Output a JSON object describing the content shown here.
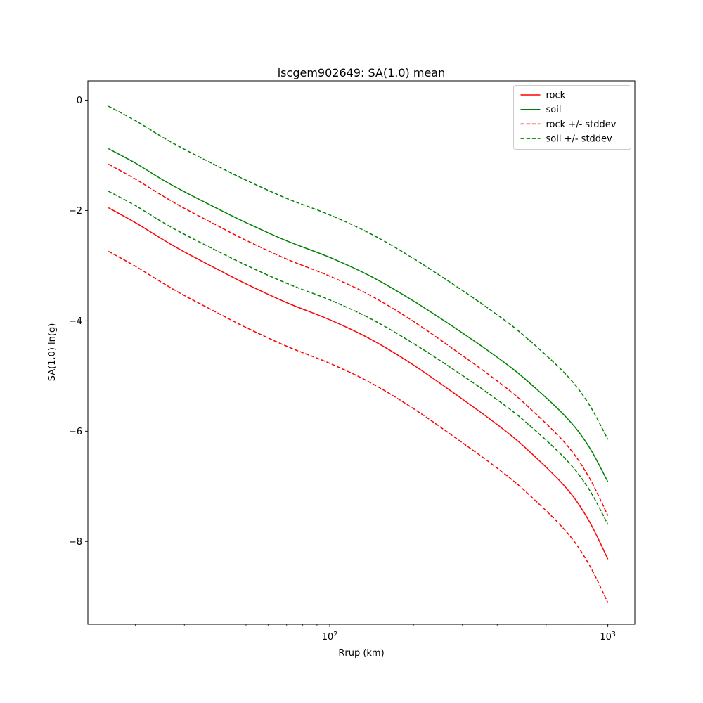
{
  "window": {
    "background": "#ffffff"
  },
  "chart_data": {
    "type": "line",
    "title": "iscgem902649: SA(1.0) mean",
    "xlabel": "Rrup (km)",
    "ylabel": "SA(1.0) ln(g)",
    "x_scale": "log",
    "y_scale": "linear",
    "xlim": [
      13.5,
      1250
    ],
    "ylim": [
      -9.5,
      0.35
    ],
    "grid": false,
    "legend_position": "upper right",
    "axis_color": "#000000",
    "x": [
      16,
      20,
      25,
      30,
      40,
      50,
      70,
      100,
      140,
      200,
      300,
      400,
      500,
      700,
      850,
      1000
    ],
    "series": [
      {
        "name": "rock",
        "color": "#ff0000",
        "style": "solid",
        "values": [
          -1.95,
          -2.22,
          -2.52,
          -2.75,
          -3.08,
          -3.33,
          -3.67,
          -3.98,
          -4.33,
          -4.8,
          -5.42,
          -5.88,
          -6.28,
          -7.0,
          -7.6,
          -8.32
        ]
      },
      {
        "name": "soil",
        "color": "#008000",
        "style": "solid",
        "values": [
          -0.88,
          -1.14,
          -1.44,
          -1.66,
          -1.98,
          -2.22,
          -2.55,
          -2.85,
          -3.19,
          -3.64,
          -4.22,
          -4.66,
          -5.04,
          -5.72,
          -6.26,
          -6.92
        ]
      },
      {
        "name": "rock +/- stddev",
        "color": "#ff0000",
        "style": "dashed",
        "stddev": 0.79,
        "values_upper": [
          -1.16,
          -1.43,
          -1.73,
          -1.96,
          -2.29,
          -2.54,
          -2.88,
          -3.19,
          -3.54,
          -4.01,
          -4.63,
          -5.09,
          -5.49,
          -6.21,
          -6.81,
          -7.53
        ],
        "values_lower": [
          -2.74,
          -3.01,
          -3.31,
          -3.54,
          -3.87,
          -4.12,
          -4.46,
          -4.77,
          -5.12,
          -5.59,
          -6.21,
          -6.67,
          -7.07,
          -7.79,
          -8.39,
          -9.11
        ]
      },
      {
        "name": "soil +/- stddev",
        "color": "#008000",
        "style": "dashed",
        "stddev": 0.77,
        "values_upper": [
          -0.11,
          -0.37,
          -0.67,
          -0.89,
          -1.21,
          -1.45,
          -1.78,
          -2.08,
          -2.42,
          -2.87,
          -3.45,
          -3.89,
          -4.27,
          -4.95,
          -5.49,
          -6.15
        ],
        "values_lower": [
          -1.65,
          -1.91,
          -2.21,
          -2.43,
          -2.75,
          -2.99,
          -3.32,
          -3.62,
          -3.96,
          -4.41,
          -4.99,
          -5.43,
          -5.81,
          -6.49,
          -7.03,
          -7.69
        ]
      }
    ],
    "yticks": [
      {
        "value": 0,
        "label": "0"
      },
      {
        "value": -2,
        "label": "−2"
      },
      {
        "value": -4,
        "label": "−4"
      },
      {
        "value": -6,
        "label": "−6"
      },
      {
        "value": -8,
        "label": "−8"
      }
    ],
    "xticks": [
      {
        "value": 100,
        "mantissa": "10",
        "exponent": "2"
      },
      {
        "value": 1000,
        "mantissa": "10",
        "exponent": "3"
      }
    ],
    "x_minor_ticks": [
      20,
      30,
      40,
      50,
      60,
      70,
      80,
      90,
      200,
      300,
      400,
      500,
      600,
      700,
      800,
      900
    ],
    "legend": {
      "background": "#ffffff",
      "border_color": "#cccccc",
      "entries": [
        "rock",
        "soil",
        "rock +/- stddev",
        "soil +/- stddev"
      ]
    }
  }
}
